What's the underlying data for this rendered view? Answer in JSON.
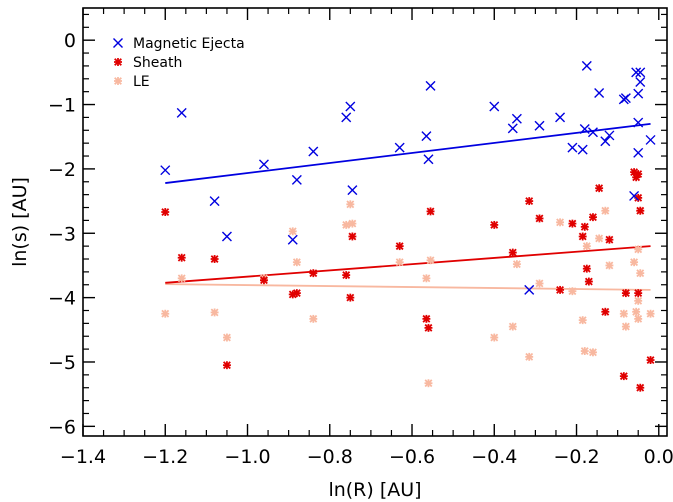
{
  "chart_data": {
    "type": "scatter",
    "xlabel": "ln(R) [AU]",
    "ylabel": "ln(s) [AU]",
    "xlim": [
      -1.4,
      0.02
    ],
    "ylim": [
      -6.15,
      0.5
    ],
    "x_ticks": [
      -1.4,
      -1.2,
      -1.0,
      -0.8,
      -0.6,
      -0.4,
      -0.2,
      0.0
    ],
    "x_tick_labels": [
      "−1.4",
      "−1.2",
      "−1.0",
      "−0.8",
      "−0.6",
      "−0.4",
      "−0.2",
      "0.0"
    ],
    "y_ticks": [
      0,
      -1,
      -2,
      -3,
      -4,
      -5,
      -6
    ],
    "y_tick_labels": [
      "0",
      "−1",
      "−2",
      "−3",
      "−4",
      "−5",
      "−6"
    ],
    "legend_position": "top-left",
    "series": [
      {
        "name": "Magnetic Ejecta",
        "color": "#0000e0",
        "marker": "x",
        "points": [
          [
            -1.2,
            -2.02
          ],
          [
            -1.16,
            -1.13
          ],
          [
            -1.08,
            -2.5
          ],
          [
            -1.05,
            -3.05
          ],
          [
            -0.96,
            -1.93
          ],
          [
            -0.89,
            -3.1
          ],
          [
            -0.88,
            -2.17
          ],
          [
            -0.84,
            -1.73
          ],
          [
            -0.76,
            -1.2
          ],
          [
            -0.75,
            -1.03
          ],
          [
            -0.745,
            -2.33
          ],
          [
            -0.63,
            -1.67
          ],
          [
            -0.565,
            -1.49
          ],
          [
            -0.56,
            -1.85
          ],
          [
            -0.555,
            -0.71
          ],
          [
            -0.4,
            -1.03
          ],
          [
            -0.355,
            -1.37
          ],
          [
            -0.345,
            -1.22
          ],
          [
            -0.315,
            -3.88
          ],
          [
            -0.29,
            -1.33
          ],
          [
            -0.24,
            -1.2
          ],
          [
            -0.21,
            -1.67
          ],
          [
            -0.185,
            -1.7
          ],
          [
            -0.18,
            -1.38
          ],
          [
            -0.175,
            -0.4
          ],
          [
            -0.16,
            -1.43
          ],
          [
            -0.145,
            -0.82
          ],
          [
            -0.13,
            -1.57
          ],
          [
            -0.12,
            -1.48
          ],
          [
            -0.08,
            -0.9
          ],
          [
            -0.085,
            -0.92
          ],
          [
            -0.06,
            -2.42
          ],
          [
            -0.055,
            -0.5
          ],
          [
            -0.05,
            -0.83
          ],
          [
            -0.05,
            -1.28
          ],
          [
            -0.045,
            -0.5
          ],
          [
            -0.045,
            -0.65
          ],
          [
            -0.05,
            -1.75
          ],
          [
            -0.02,
            -1.55
          ]
        ],
        "fit": {
          "x": [
            -1.2,
            -0.02
          ],
          "y": [
            -2.22,
            -1.3
          ]
        }
      },
      {
        "name": "Sheath",
        "color": "#e00000",
        "marker": "asterisk",
        "points": [
          [
            -1.2,
            -2.67
          ],
          [
            -1.16,
            -3.38
          ],
          [
            -1.08,
            -3.4
          ],
          [
            -1.05,
            -5.05
          ],
          [
            -0.96,
            -3.73
          ],
          [
            -0.89,
            -3.95
          ],
          [
            -0.88,
            -3.93
          ],
          [
            -0.84,
            -3.62
          ],
          [
            -0.76,
            -3.65
          ],
          [
            -0.75,
            -4.0
          ],
          [
            -0.745,
            -3.05
          ],
          [
            -0.63,
            -3.2
          ],
          [
            -0.565,
            -4.33
          ],
          [
            -0.56,
            -4.47
          ],
          [
            -0.555,
            -2.66
          ],
          [
            -0.4,
            -2.87
          ],
          [
            -0.355,
            -3.3
          ],
          [
            -0.315,
            -2.5
          ],
          [
            -0.29,
            -2.77
          ],
          [
            -0.24,
            -3.88
          ],
          [
            -0.21,
            -2.85
          ],
          [
            -0.185,
            -3.05
          ],
          [
            -0.18,
            -2.9
          ],
          [
            -0.175,
            -3.55
          ],
          [
            -0.17,
            -3.75
          ],
          [
            -0.16,
            -2.75
          ],
          [
            -0.145,
            -2.3
          ],
          [
            -0.13,
            -4.22
          ],
          [
            -0.12,
            -3.1
          ],
          [
            -0.08,
            -3.93
          ],
          [
            -0.085,
            -5.22
          ],
          [
            -0.06,
            -2.05
          ],
          [
            -0.055,
            -2.13
          ],
          [
            -0.05,
            -2.45
          ],
          [
            -0.05,
            -3.93
          ],
          [
            -0.045,
            -5.4
          ],
          [
            -0.045,
            -2.65
          ],
          [
            -0.05,
            -2.08
          ],
          [
            -0.02,
            -4.97
          ]
        ],
        "fit": {
          "x": [
            -1.2,
            -0.02
          ],
          "y": [
            -3.77,
            -3.2
          ]
        }
      },
      {
        "name": "LE",
        "color": "#f8b8a0",
        "marker": "asterisk",
        "points": [
          [
            -1.2,
            -4.25
          ],
          [
            -1.16,
            -3.7
          ],
          [
            -1.08,
            -4.23
          ],
          [
            -1.05,
            -4.62
          ],
          [
            -0.96,
            -3.7
          ],
          [
            -0.89,
            -2.97
          ],
          [
            -0.88,
            -3.45
          ],
          [
            -0.84,
            -4.33
          ],
          [
            -0.76,
            -2.87
          ],
          [
            -0.75,
            -2.55
          ],
          [
            -0.745,
            -2.85
          ],
          [
            -0.63,
            -3.45
          ],
          [
            -0.565,
            -3.7
          ],
          [
            -0.56,
            -5.33
          ],
          [
            -0.555,
            -3.42
          ],
          [
            -0.4,
            -4.62
          ],
          [
            -0.355,
            -4.45
          ],
          [
            -0.345,
            -3.48
          ],
          [
            -0.315,
            -4.92
          ],
          [
            -0.29,
            -3.78
          ],
          [
            -0.24,
            -2.83
          ],
          [
            -0.21,
            -3.9
          ],
          [
            -0.185,
            -4.35
          ],
          [
            -0.18,
            -4.83
          ],
          [
            -0.175,
            -3.2
          ],
          [
            -0.16,
            -4.85
          ],
          [
            -0.145,
            -3.08
          ],
          [
            -0.13,
            -2.65
          ],
          [
            -0.12,
            -3.5
          ],
          [
            -0.08,
            -4.45
          ],
          [
            -0.085,
            -4.25
          ],
          [
            -0.06,
            -3.45
          ],
          [
            -0.055,
            -4.22
          ],
          [
            -0.05,
            -4.05
          ],
          [
            -0.05,
            -3.25
          ],
          [
            -0.045,
            -2.65
          ],
          [
            -0.045,
            -3.62
          ],
          [
            -0.05,
            -4.33
          ],
          [
            -0.02,
            -4.25
          ]
        ],
        "fit": {
          "x": [
            -1.2,
            -0.02
          ],
          "y": [
            -3.79,
            -3.88
          ]
        }
      }
    ]
  }
}
